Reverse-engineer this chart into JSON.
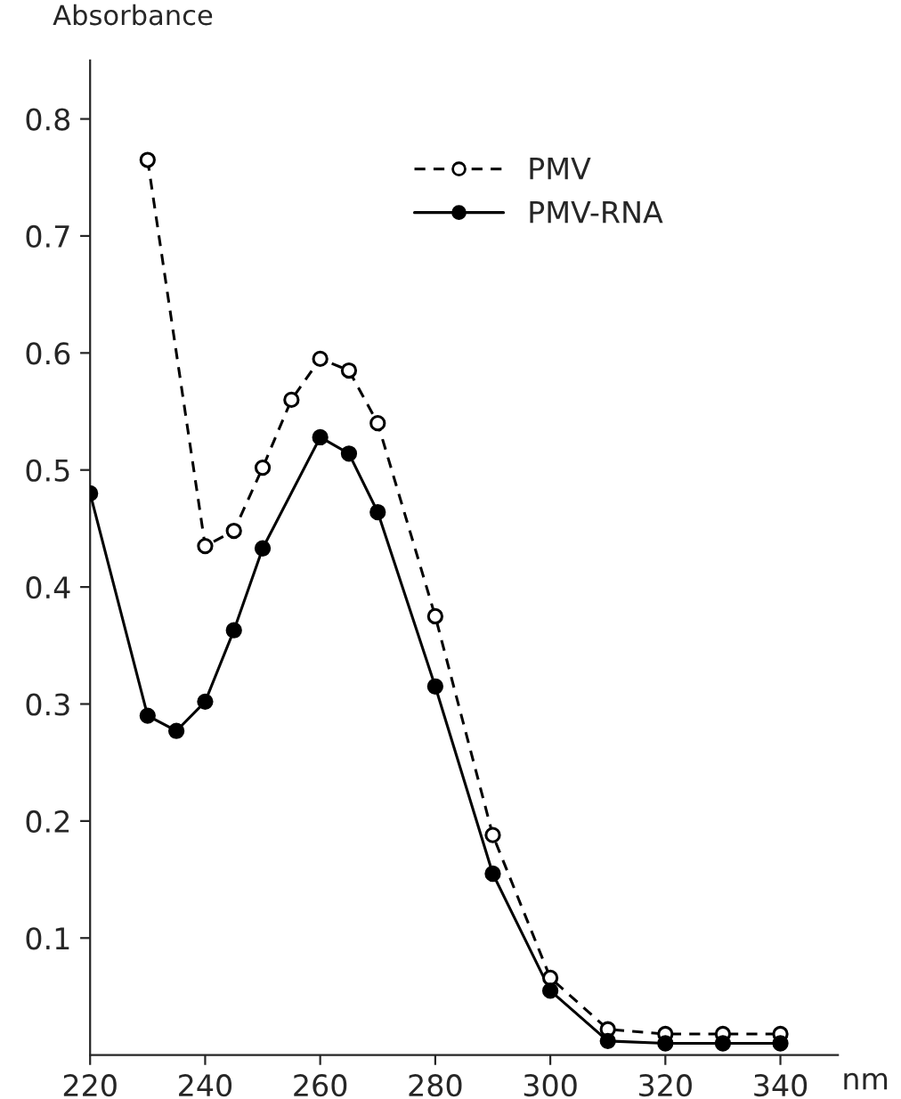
{
  "chart_data": {
    "type": "line",
    "ylabel": "Absorbance",
    "xlabel": "nm",
    "xlim": [
      220,
      350
    ],
    "xticks": [
      220,
      240,
      260,
      280,
      300,
      320,
      340
    ],
    "ylim": [
      0,
      0.85
    ],
    "yticks": [
      0.1,
      0.2,
      0.3,
      0.4,
      0.5,
      0.6,
      0.7,
      0.8
    ],
    "grid": false,
    "legend": "top",
    "marker": "circle",
    "series": [
      {
        "name": "PMV",
        "color": "#000000",
        "line_style": "dashed",
        "x": [
          230,
          240,
          245,
          250,
          255,
          260,
          265,
          270,
          280,
          290,
          300,
          310,
          320,
          330,
          340
        ],
        "values": [
          0.765,
          0.435,
          0.448,
          0.502,
          0.56,
          0.595,
          0.585,
          0.54,
          0.375,
          0.188,
          0.066,
          0.022,
          0.018,
          0.018,
          0.018
        ]
      },
      {
        "name": "PMV-RNA",
        "color": "#000000",
        "line_style": "solid",
        "x": [
          220,
          230,
          235,
          240,
          245,
          250,
          260,
          265,
          270,
          280,
          290,
          300,
          310,
          320,
          330,
          340
        ],
        "values": [
          0.48,
          0.29,
          0.277,
          0.302,
          0.363,
          0.433,
          0.528,
          0.514,
          0.464,
          0.315,
          0.155,
          0.055,
          0.012,
          0.01,
          0.01,
          0.01
        ]
      }
    ]
  }
}
